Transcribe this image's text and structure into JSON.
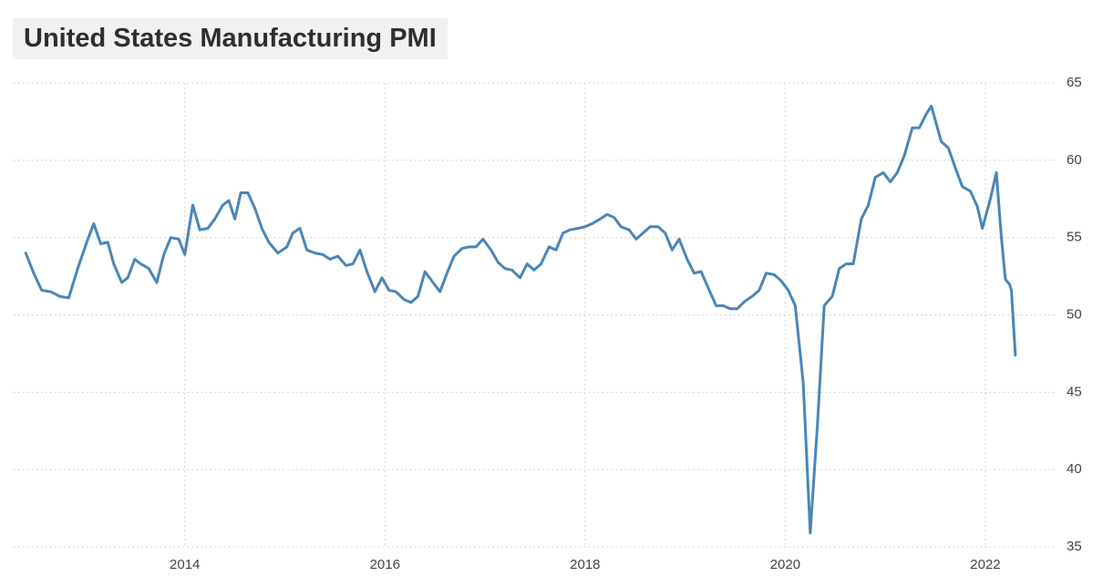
{
  "chart_data": {
    "type": "line",
    "title": "United States Manufacturing PMI",
    "x": [
      2012.41,
      2012.49,
      2012.57,
      2012.66,
      2012.75,
      2012.84,
      2012.93,
      2013.02,
      2013.09,
      2013.16,
      2013.23,
      2013.29,
      2013.37,
      2013.43,
      2013.5,
      2013.56,
      2013.64,
      2013.72,
      2013.79,
      2013.86,
      2013.94,
      2014.0,
      2014.08,
      2014.15,
      2014.23,
      2014.3,
      2014.38,
      2014.44,
      2014.5,
      2014.56,
      2014.63,
      2014.7,
      2014.77,
      2014.84,
      2014.93,
      2015.02,
      2015.08,
      2015.15,
      2015.22,
      2015.3,
      2015.38,
      2015.45,
      2015.53,
      2015.61,
      2015.68,
      2015.75,
      2015.82,
      2015.9,
      2015.97,
      2016.04,
      2016.11,
      2016.19,
      2016.26,
      2016.33,
      2016.4,
      2016.48,
      2016.55,
      2016.62,
      2016.69,
      2016.77,
      2016.84,
      2016.91,
      2016.98,
      2017.06,
      2017.13,
      2017.2,
      2017.27,
      2017.35,
      2017.42,
      2017.49,
      2017.56,
      2017.64,
      2017.71,
      2017.78,
      2017.85,
      2017.93,
      2018.0,
      2018.07,
      2018.15,
      2018.22,
      2018.29,
      2018.36,
      2018.44,
      2018.51,
      2018.58,
      2018.65,
      2018.73,
      2018.8,
      2018.87,
      2018.94,
      2019.02,
      2019.09,
      2019.16,
      2019.24,
      2019.31,
      2019.38,
      2019.45,
      2019.52,
      2019.6,
      2019.67,
      2019.74,
      2019.81,
      2019.89,
      2019.96,
      2020.03,
      2020.1,
      2020.18,
      2020.25,
      2020.32,
      2020.39,
      2020.47,
      2020.54,
      2020.61,
      2020.68,
      2020.76,
      2020.83,
      2020.9,
      2020.98,
      2021.05,
      2021.12,
      2021.19,
      2021.27,
      2021.34,
      2021.41,
      2021.46,
      2021.56,
      2021.63,
      2021.7,
      2021.77,
      2021.85,
      2021.92,
      2021.97,
      2022.05,
      2022.11,
      2022.16,
      2022.2,
      2022.24,
      2022.26,
      2022.3
    ],
    "series": [
      {
        "name": "Manufacturing PMI",
        "color": "#4a86b8",
        "values": [
          54.0,
          52.7,
          51.6,
          51.5,
          51.2,
          51.1,
          53.0,
          54.7,
          55.9,
          54.6,
          54.7,
          53.3,
          52.1,
          52.4,
          53.6,
          53.3,
          53.0,
          52.1,
          53.9,
          55.0,
          54.9,
          53.9,
          57.1,
          55.5,
          55.6,
          56.2,
          57.1,
          57.4,
          56.2,
          57.9,
          57.9,
          56.9,
          55.6,
          54.7,
          54.0,
          54.4,
          55.3,
          55.6,
          54.2,
          54.0,
          53.9,
          53.6,
          53.8,
          53.2,
          53.3,
          54.2,
          52.8,
          51.5,
          52.4,
          51.6,
          51.5,
          51.0,
          50.8,
          51.2,
          52.8,
          52.1,
          51.5,
          52.7,
          53.8,
          54.3,
          54.4,
          54.4,
          54.9,
          54.2,
          53.4,
          53.0,
          52.9,
          52.4,
          53.3,
          52.9,
          53.3,
          54.4,
          54.2,
          55.3,
          55.5,
          55.6,
          55.7,
          55.9,
          56.2,
          56.5,
          56.3,
          55.7,
          55.5,
          54.9,
          55.3,
          55.7,
          55.7,
          55.3,
          54.2,
          54.9,
          53.6,
          52.7,
          52.8,
          51.6,
          50.6,
          50.6,
          50.4,
          50.4,
          50.9,
          51.2,
          51.6,
          52.7,
          52.6,
          52.2,
          51.6,
          50.6,
          45.6,
          35.9,
          42.7,
          50.6,
          51.2,
          53.0,
          53.3,
          53.3,
          56.2,
          57.1,
          58.9,
          59.2,
          58.6,
          59.2,
          60.3,
          62.1,
          62.1,
          63.0,
          63.5,
          61.2,
          60.8,
          59.5,
          58.3,
          58.0,
          57.0,
          55.6,
          57.5,
          59.2,
          55.0,
          52.3,
          52.0,
          51.6,
          47.4
        ]
      }
    ],
    "xlim": [
      2012.29,
      2022.72
    ],
    "xticks": [
      2014,
      2016,
      2018,
      2020,
      2022
    ],
    "ylim": [
      35,
      65
    ],
    "yticks": [
      35,
      40,
      45,
      50,
      55,
      60,
      65
    ],
    "grid": true
  }
}
